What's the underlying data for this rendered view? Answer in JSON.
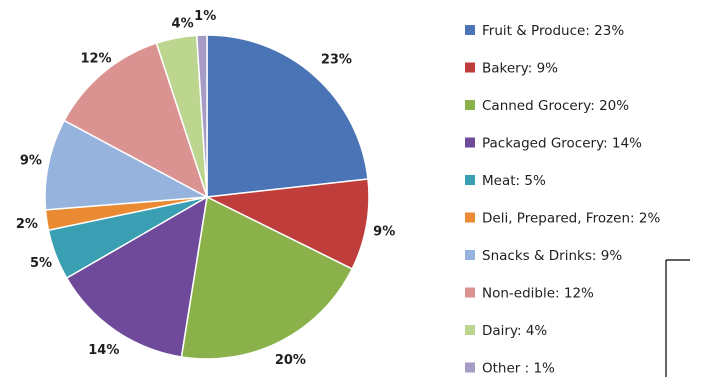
{
  "chart_data": {
    "type": "pie",
    "title": "",
    "start_angle_deg": 0,
    "direction": "clockwise",
    "legend_position": "right",
    "slices": [
      {
        "label": "Fruit & Produce",
        "value": 23,
        "display": "23%",
        "legend": "Fruit & Produce:  23%",
        "color": "#4a74b5"
      },
      {
        "label": "Bakery",
        "value": 9,
        "display": "9%",
        "legend": "Bakery:  9%",
        "color": "#bf3d3b"
      },
      {
        "label": "Canned Grocery",
        "value": 20,
        "display": "20%",
        "legend": "Canned Grocery:  20%",
        "color": "#8bb24a"
      },
      {
        "label": "Packaged Grocery",
        "value": 14,
        "display": "14%",
        "legend": "Packaged Grocery:  14%",
        "color": "#6f4a9a"
      },
      {
        "label": "Meat",
        "value": 5,
        "display": "5%",
        "legend": "Meat:  5%",
        "color": "#3a9fb3"
      },
      {
        "label": "Deli, Prepared, Frozen",
        "value": 2,
        "display": "2%",
        "legend": "Deli, Prepared, Frozen:  2%",
        "color": "#ea8b33"
      },
      {
        "label": "Snacks & Drinks",
        "value": 9,
        "display": "9%",
        "legend": "Snacks & Drinks:  9%",
        "color": "#96b3dd"
      },
      {
        "label": "Non-edible",
        "value": 12,
        "display": "12%",
        "legend": "Non-edible:  12%",
        "color": "#da9390"
      },
      {
        "label": "Dairy",
        "value": 4,
        "display": "4%",
        "legend": "Dairy:  4%",
        "color": "#bcd58f"
      },
      {
        "label": "Other",
        "value": 1,
        "display": "1%",
        "legend": "Other :  1%",
        "color": "#a59bc4"
      }
    ]
  }
}
